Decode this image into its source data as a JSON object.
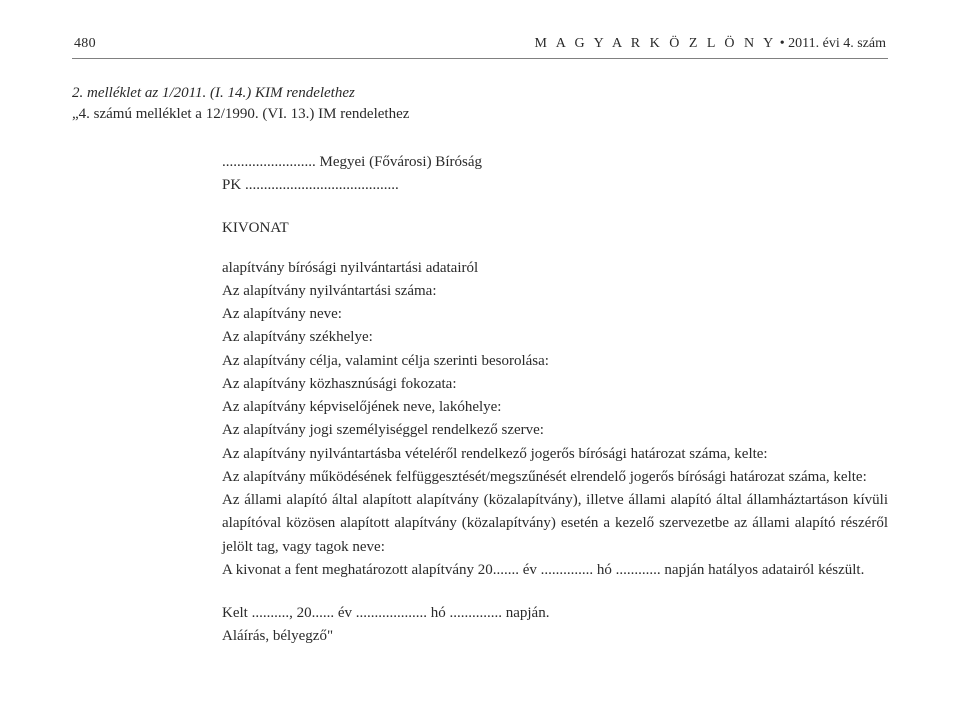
{
  "header": {
    "page_number": "480",
    "journal_title": "M A G Y A R   K Ö Z L Ö N Y",
    "issue": " •  2011. évi 4. szám"
  },
  "attachment": {
    "line1": "2. melléklet az 1/2011. (I. 14.) KIM rendelethez",
    "line2": "„4. számú melléklet a 12/1990. (VI. 13.) IM rendelethez"
  },
  "authority": {
    "dots1": ".........................",
    "label1": " Megyei (Fővárosi) Bíróság",
    "pk": "PK ",
    "dots2": "........................................."
  },
  "extract_title": "KIVONAT",
  "body": {
    "l1": "alapítvány bírósági nyilvántartási adatairól",
    "l2": "Az alapítvány nyilvántartási száma:",
    "l3": "Az alapítvány neve:",
    "l4": "Az alapítvány székhelye:",
    "l5": "Az alapítvány célja, valamint célja szerinti besorolása:",
    "l6": "Az alapítvány közhasznúsági fokozata:",
    "l7": "Az alapítvány képviselőjének neve, lakóhelye:",
    "l8": "Az alapítvány jogi személyiséggel rendelkező szerve:",
    "l9": "Az alapítvány nyilvántartásba vételéről rendelkező jogerős bírósági határozat száma, kelte:",
    "l10": "Az alapítvány működésének felfüggesztését/megszűnését elrendelő jogerős bírósági határozat száma, kelte:",
    "l11": "Az állami alapító által alapított alapítvány (közalapítvány), illetve állami alapító által államháztartáson kívüli alapítóval közösen alapított alapítvány (közalapítvány) esetén a kezelő szervezetbe az állami alapító részéről jelölt tag, vagy tagok neve:",
    "l12": "A kivonat a fent meghatározott alapítvány 20....... év .............. hó ............ napján hatályos adatairól készült."
  },
  "closing": {
    "date": "Kelt .........., 20...... év ................... hó .............. napján.",
    "sign": "Aláírás, bélyegző\""
  }
}
